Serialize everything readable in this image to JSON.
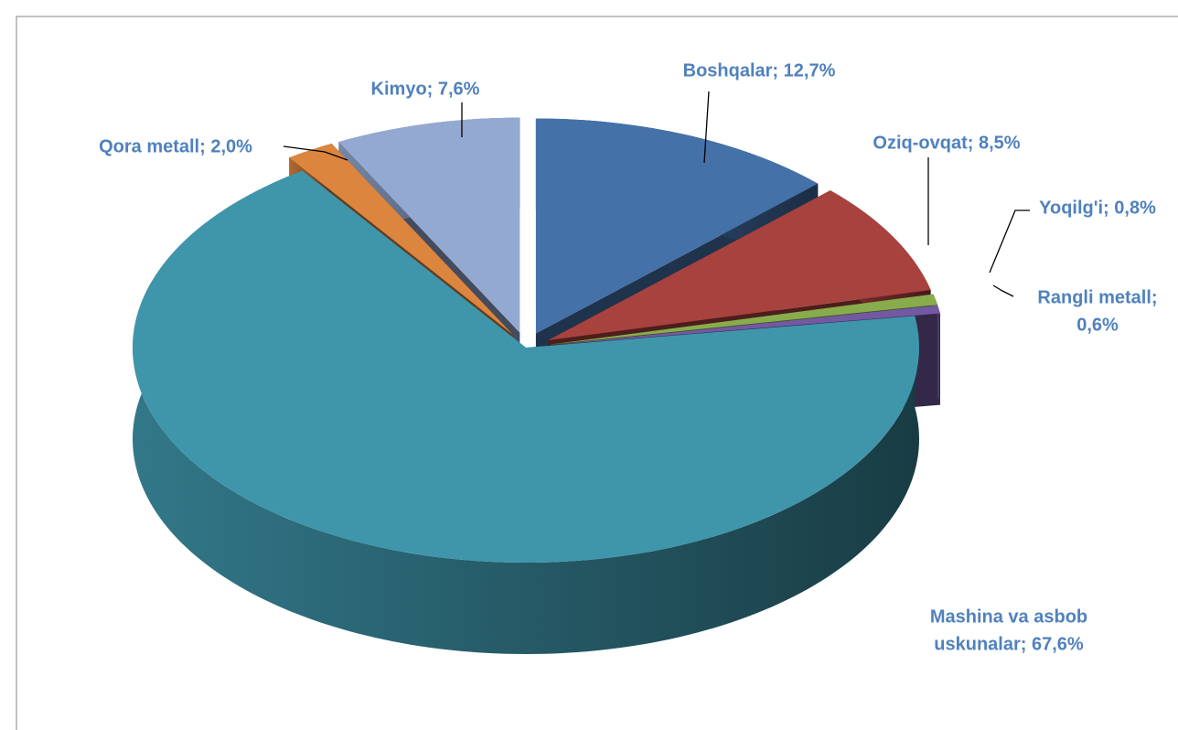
{
  "chart_data": {
    "type": "pie",
    "categories": [
      "Boshqalar",
      "Oziq-ovqat",
      "Yoqilg'i",
      "Rangli metall",
      "Mashina va asbob uskunalar",
      "Qora metall",
      "Kimyo"
    ],
    "values": [
      12.7,
      8.5,
      0.8,
      0.6,
      67.6,
      2.0,
      7.6
    ],
    "value_labels": [
      "Boshqalar; 12,7%",
      "Oziq-ovqat; 8,5%",
      "Yoqilg'i; 0,8%",
      [
        "Rangli metall;",
        "0,6%"
      ],
      [
        "Mashina va asbob",
        "uskunalar; 67,6%"
      ],
      "Qora metall; 2,0%",
      "Kimyo; 7,6%"
    ],
    "colors": [
      "#4571a9",
      "#a8423f",
      "#88ac4c",
      "#7259a1",
      "#3f96ab",
      "#dc853e",
      "#94a9d1"
    ]
  }
}
